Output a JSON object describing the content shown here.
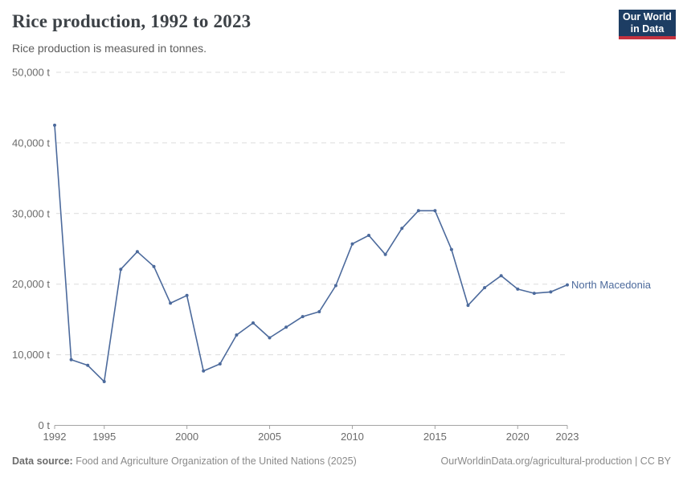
{
  "header": {
    "title": "Rice production, 1992 to 2023",
    "subtitle": "Rice production is measured in tonnes.",
    "logo_line1": "Our World",
    "logo_line2": "in Data"
  },
  "chart_data": {
    "type": "line",
    "title": "Rice production, 1992 to 2023",
    "ylabel": "",
    "xlabel": "",
    "unit": "tonnes",
    "ylim": [
      0,
      50000
    ],
    "yticks": [
      0,
      10000,
      20000,
      30000,
      40000,
      50000
    ],
    "ytick_labels": [
      "0 t",
      "10,000 t",
      "20,000 t",
      "30,000 t",
      "40,000 t",
      "50,000 t"
    ],
    "xticks": [
      1992,
      1995,
      2000,
      2005,
      2010,
      2015,
      2020,
      2023
    ],
    "grid": "horizontal-dashed",
    "legend_position": "end-of-line-label",
    "x": [
      1992,
      1993,
      1994,
      1995,
      1996,
      1997,
      1998,
      1999,
      2000,
      2001,
      2002,
      2003,
      2004,
      2005,
      2006,
      2007,
      2008,
      2009,
      2010,
      2011,
      2012,
      2013,
      2014,
      2015,
      2016,
      2017,
      2018,
      2019,
      2020,
      2021,
      2022,
      2023
    ],
    "series": [
      {
        "name": "North Macedonia",
        "color": "#4C6A9C",
        "values": [
          42500,
          9300,
          8500,
          6200,
          22100,
          24600,
          22500,
          17300,
          18400,
          7700,
          8700,
          12800,
          14500,
          12400,
          13900,
          15400,
          16100,
          19800,
          25700,
          26900,
          24200,
          27900,
          30400,
          30400,
          24900,
          17000,
          19500,
          21200,
          19300,
          18700,
          18900,
          19900
        ]
      }
    ]
  },
  "footer": {
    "source_label": "Data source:",
    "source_text": "Food and Agriculture Organization of the United Nations (2025)",
    "credit_link": "OurWorldinData.org/agricultural-production",
    "credit_separator": " | ",
    "credit_license": "CC BY"
  },
  "colors": {
    "line": "#4C6A9C",
    "grid": "#dcdcdc",
    "axis": "#a3a3a3",
    "tick_label": "#6b6b6b",
    "logo_bg": "#1d3d63",
    "logo_stripe": "#c5323f"
  }
}
